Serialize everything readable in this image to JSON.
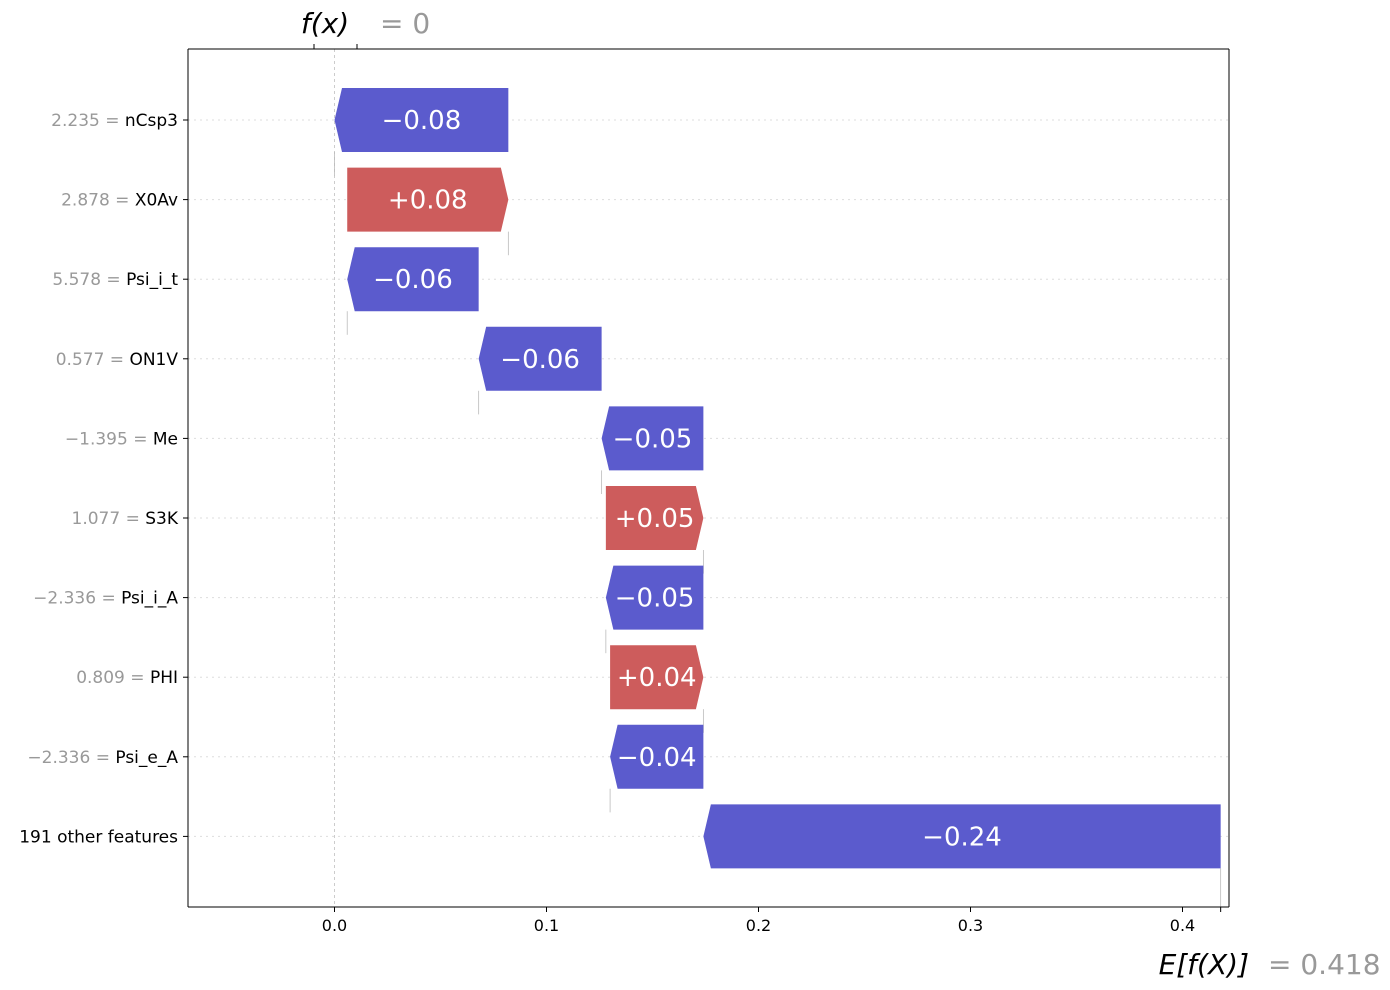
{
  "chart_data": {
    "type": "waterfall",
    "top_annotation": {
      "label": "f(x)",
      "value_text": "= 0",
      "value": 0
    },
    "bottom_annotation": {
      "label": "E[f(X)]",
      "value_text": "= 0.418",
      "value": 0.418
    },
    "x_ticks": [
      {
        "value": 0.0,
        "label": "0.0"
      },
      {
        "value": 0.1,
        "label": "0.1"
      },
      {
        "value": 0.2,
        "label": "0.2"
      },
      {
        "value": 0.3,
        "label": "0.3"
      },
      {
        "value": 0.4,
        "label": "0.4"
      }
    ],
    "xlim": [
      -0.069,
      0.422
    ],
    "features": [
      {
        "value_text": "2.235",
        "name": "nCsp3",
        "start": 0.082,
        "end": 0.0,
        "label": "−0.08"
      },
      {
        "value_text": "2.878",
        "name": "X0Av",
        "start": 0.006,
        "end": 0.082,
        "label": "+0.08"
      },
      {
        "value_text": "5.578",
        "name": "Psi_i_t",
        "start": 0.068,
        "end": 0.006,
        "label": "−0.06"
      },
      {
        "value_text": "0.577",
        "name": "ON1V",
        "start": 0.126,
        "end": 0.068,
        "label": "−0.06"
      },
      {
        "value_text": "−1.395",
        "name": "Me",
        "start": 0.174,
        "end": 0.126,
        "label": "−0.05"
      },
      {
        "value_text": "1.077",
        "name": "S3K",
        "start": 0.128,
        "end": 0.174,
        "label": "+0.05"
      },
      {
        "value_text": "−2.336",
        "name": "Psi_i_A",
        "start": 0.174,
        "end": 0.128,
        "label": "−0.05"
      },
      {
        "value_text": "0.809",
        "name": "PHI",
        "start": 0.13,
        "end": 0.174,
        "label": "+0.04"
      },
      {
        "value_text": "−2.336",
        "name": "Psi_e_A",
        "start": 0.174,
        "end": 0.13,
        "label": "−0.04"
      },
      {
        "value_text": "",
        "name": "191 other features",
        "start": 0.418,
        "end": 0.174,
        "label": "−0.24"
      }
    ],
    "colors": {
      "positive": "#cd5c5c",
      "negative": "#5b5bcd",
      "muted_text": "#999999"
    },
    "grid": "dotted horizontal per row"
  }
}
